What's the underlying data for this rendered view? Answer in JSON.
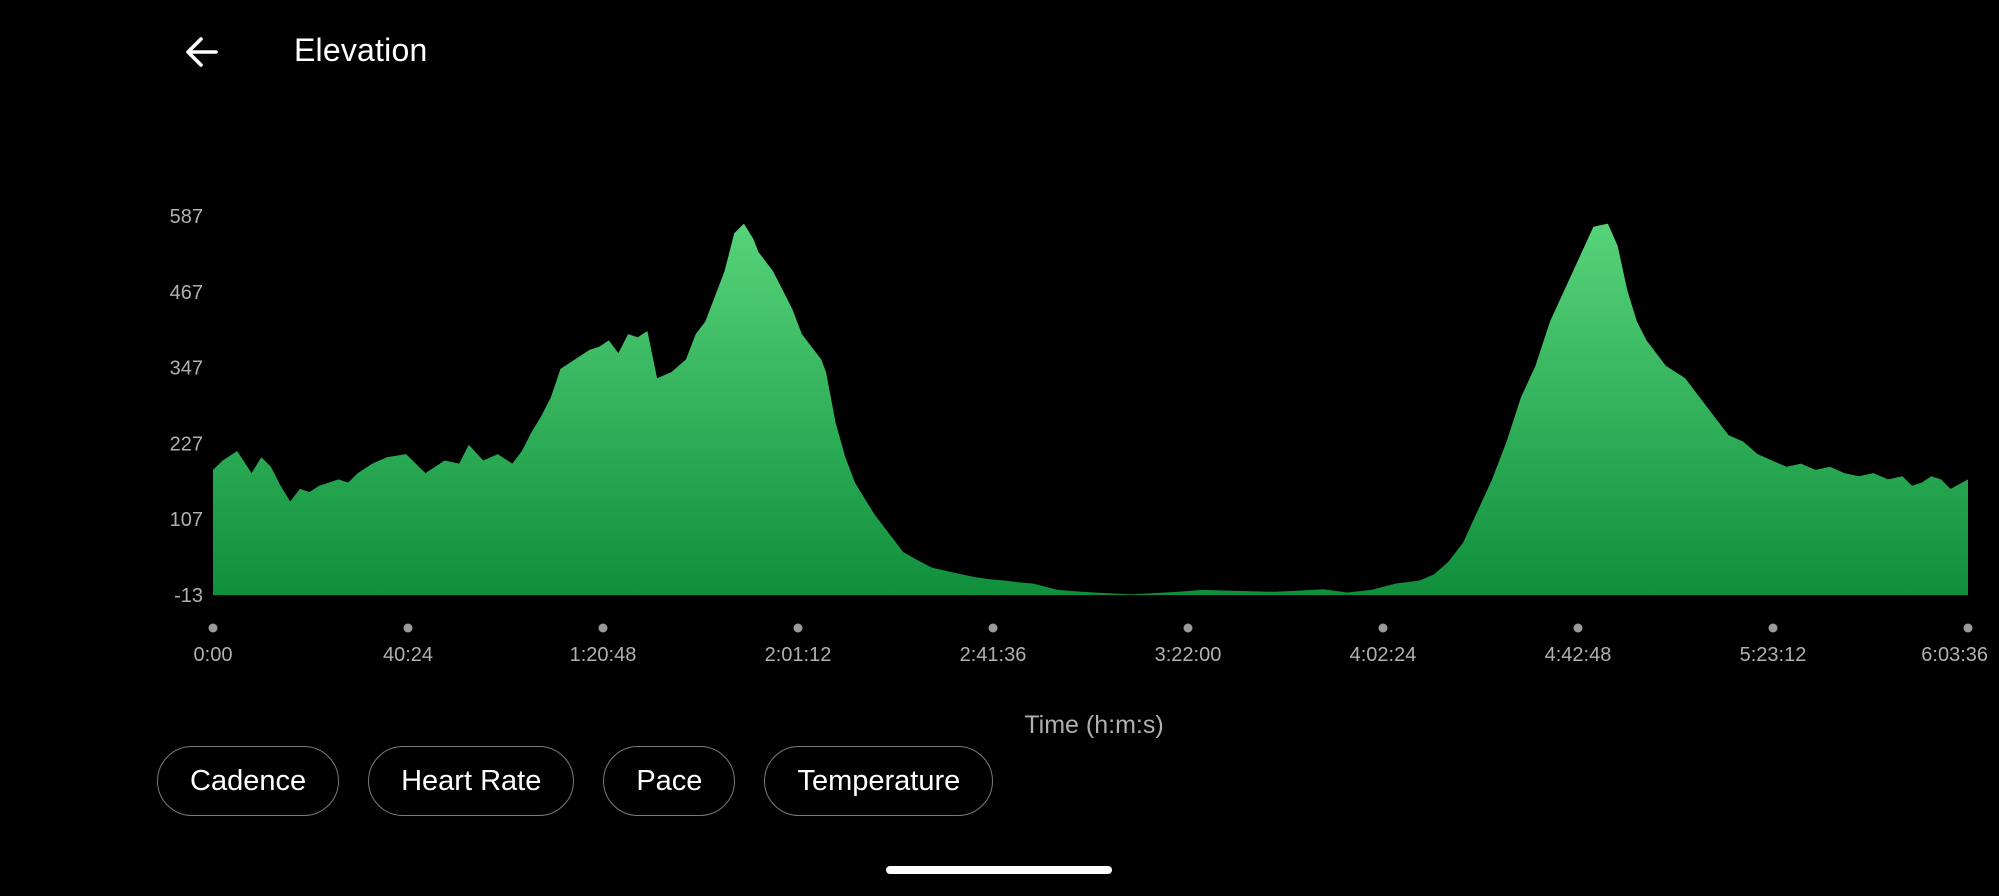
{
  "header": {
    "back_icon": "arrow-left-icon",
    "title": "Elevation"
  },
  "chart_data": {
    "type": "area",
    "title": "",
    "xlabel": "Time (h:m:s)",
    "ylabel": "",
    "y_ticks": [
      "587",
      "467",
      "347",
      "227",
      "107",
      "-13"
    ],
    "ylim": [
      -13,
      587
    ],
    "x_ticks": [
      "0:00",
      "40:24",
      "1:20:48",
      "2:01:12",
      "2:41:36",
      "3:22:00",
      "4:02:24",
      "4:42:48",
      "5:23:12",
      "6:03:36"
    ],
    "x_minutes_range": [
      0,
      363.6
    ],
    "grid": false,
    "legend": "none",
    "fill_top_color": "#57d47a",
    "fill_bottom_color": "#0f8f3c",
    "series": [
      {
        "x_minutes": [
          0,
          2,
          5,
          8,
          10,
          12,
          14,
          16,
          18,
          20,
          22,
          24,
          26,
          28,
          30,
          33,
          36,
          40,
          44,
          48,
          51,
          53,
          56,
          59,
          62,
          64,
          66,
          68,
          70,
          72,
          75,
          78,
          80,
          82,
          84,
          86,
          88,
          90,
          92,
          95,
          98,
          100,
          102,
          104,
          106,
          108,
          110,
          112,
          113,
          114,
          116,
          118,
          120,
          122,
          124,
          126,
          127,
          128,
          129,
          131,
          133,
          135,
          137,
          140,
          143,
          146,
          149,
          152,
          155,
          158,
          161,
          164,
          167,
          170,
          175,
          180,
          185,
          190,
          195,
          200,
          205,
          210,
          215,
          220,
          225,
          230,
          235,
          240,
          245,
          250,
          253,
          256,
          259,
          262,
          265,
          268,
          271,
          274,
          277,
          280,
          283,
          286,
          289,
          291,
          293,
          295,
          297,
          299,
          301,
          303,
          305,
          308,
          311,
          314,
          317,
          320,
          323,
          326,
          329,
          332,
          335,
          338,
          341,
          344,
          347,
          350,
          352,
          354,
          356,
          358,
          360,
          363.6
        ],
        "values": [
          185,
          200,
          215,
          180,
          205,
          190,
          160,
          135,
          155,
          150,
          160,
          165,
          170,
          165,
          180,
          195,
          205,
          210,
          180,
          200,
          195,
          225,
          200,
          210,
          195,
          215,
          245,
          270,
          300,
          345,
          360,
          375,
          380,
          390,
          370,
          400,
          395,
          405,
          330,
          340,
          360,
          400,
          420,
          460,
          500,
          560,
          575,
          550,
          530,
          520,
          500,
          470,
          440,
          400,
          380,
          360,
          340,
          300,
          260,
          205,
          165,
          140,
          115,
          85,
          55,
          42,
          30,
          25,
          20,
          15,
          12,
          10,
          7,
          5,
          -5,
          -8,
          -10,
          -12,
          -10,
          -8,
          -5,
          -6,
          -7,
          -8,
          -6,
          -4,
          -9,
          -5,
          5,
          10,
          20,
          40,
          70,
          120,
          170,
          230,
          300,
          350,
          420,
          470,
          520,
          570,
          575,
          540,
          470,
          420,
          390,
          370,
          350,
          340,
          330,
          300,
          270,
          240,
          230,
          210,
          200,
          190,
          195,
          185,
          190,
          180,
          175,
          180,
          170,
          175,
          160,
          165,
          175,
          170,
          155,
          170
        ]
      }
    ]
  },
  "chips": [
    {
      "label": "Cadence"
    },
    {
      "label": "Heart Rate"
    },
    {
      "label": "Pace"
    },
    {
      "label": "Temperature"
    }
  ]
}
